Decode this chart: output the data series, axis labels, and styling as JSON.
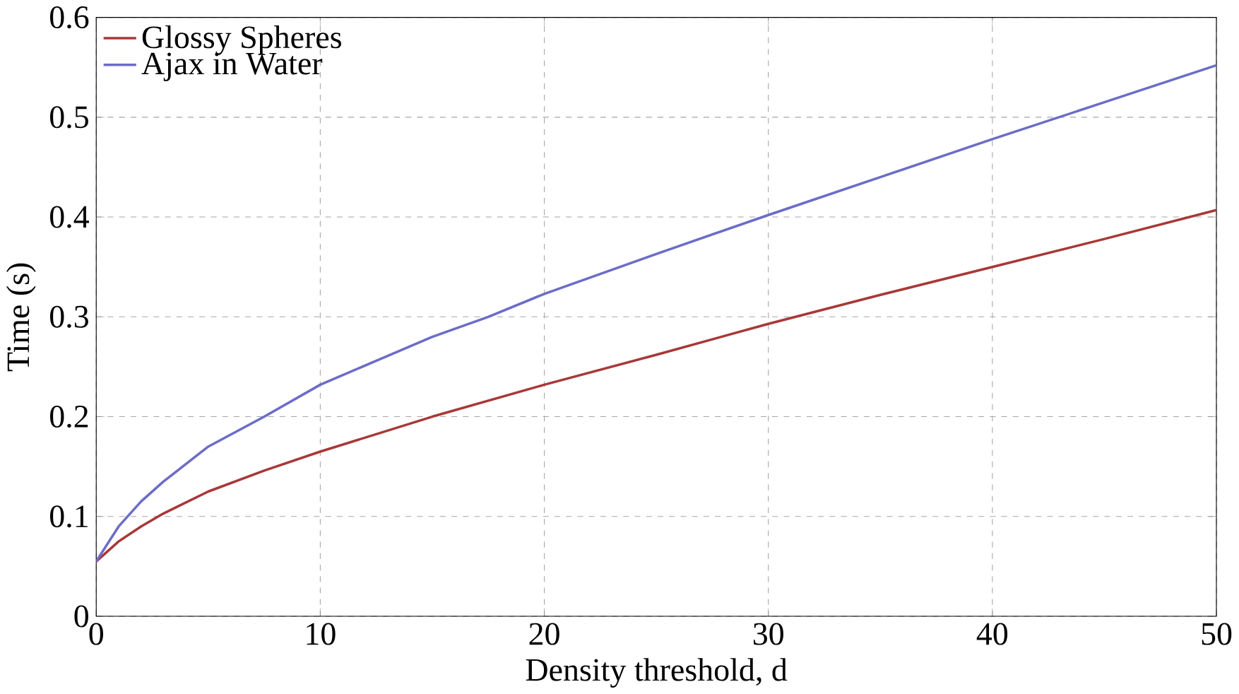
{
  "chart_data": {
    "type": "line",
    "xlabel": "Density threshold, d",
    "ylabel": "Time (s)",
    "xlim": [
      0,
      50
    ],
    "ylim": [
      0,
      0.6
    ],
    "xticks": [
      0,
      10,
      20,
      30,
      40,
      50
    ],
    "yticks": [
      0,
      0.1,
      0.2,
      0.3,
      0.4,
      0.5,
      0.6
    ],
    "grid": true,
    "legend": "top left",
    "series": [
      {
        "name": "Glossy Spheres",
        "color": "#a83838",
        "x": [
          0,
          1,
          2,
          3,
          5,
          7.5,
          10,
          15,
          20,
          25,
          30,
          35,
          40,
          45,
          50
        ],
        "values": [
          0.055,
          0.075,
          0.09,
          0.103,
          0.125,
          0.146,
          0.165,
          0.2,
          0.232,
          0.262,
          0.293,
          0.322,
          0.35,
          0.378,
          0.407
        ]
      },
      {
        "name": "Ajax in Water",
        "color": "#6c6cc8",
        "x": [
          0,
          1,
          2,
          3,
          5,
          7.5,
          10,
          15,
          17.5,
          20,
          25,
          30,
          35,
          40,
          45,
          50
        ],
        "values": [
          0.055,
          0.09,
          0.115,
          0.135,
          0.17,
          0.2,
          0.232,
          0.28,
          0.3,
          0.323,
          0.363,
          0.402,
          0.44,
          0.478,
          0.515,
          0.552
        ]
      }
    ]
  }
}
